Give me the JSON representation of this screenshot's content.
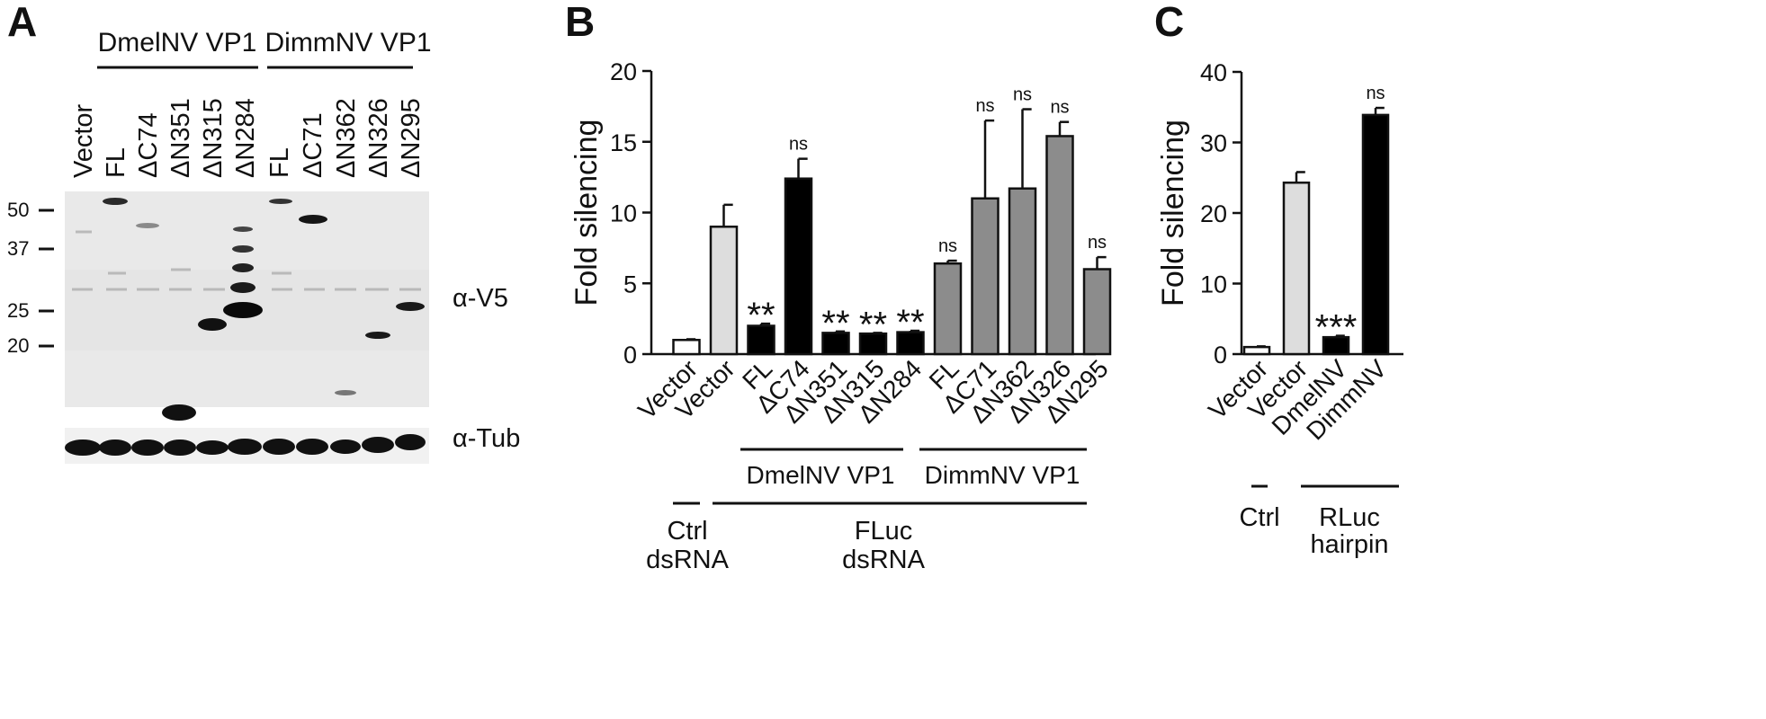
{
  "panel_letters": {
    "a": "A",
    "b": "B",
    "c": "C"
  },
  "blot": {
    "group_labels": [
      "DmelNV VP1",
      "DimmNV VP1"
    ],
    "lane_labels": [
      "Vector",
      "FL",
      "ΔC74",
      "ΔN351",
      "ΔN315",
      "ΔN284",
      "FL",
      "ΔC71",
      "ΔN362",
      "ΔN326",
      "ΔN295"
    ],
    "markers": [
      "50",
      "37",
      "25",
      "20"
    ],
    "antibodies": [
      "α-V5",
      "α-Tub"
    ]
  },
  "chart_data": [
    {
      "type": "bar",
      "panel": "B",
      "ylabel": "Fold silencing",
      "ylim": [
        0,
        20
      ],
      "yticks": [
        "0",
        "5",
        "10",
        "15",
        "20"
      ],
      "categories": [
        "Vector",
        "Vector",
        "FL",
        "ΔC74",
        "ΔN351",
        "ΔN315",
        "ΔN284",
        "FL",
        "ΔC71",
        "ΔN362",
        "ΔN326",
        "ΔN295"
      ],
      "values": [
        1.0,
        9.0,
        2.0,
        12.4,
        1.5,
        1.45,
        1.55,
        6.4,
        11.0,
        11.7,
        15.4,
        6.0
      ],
      "errors": [
        0.05,
        1.55,
        0.15,
        1.4,
        0.1,
        0.05,
        0.1,
        0.2,
        5.5,
        5.6,
        1.0,
        0.85
      ],
      "fills": [
        "#ffffff",
        "#dddddd",
        "#000000",
        "#000000",
        "#000000",
        "#000000",
        "#000000",
        "#8c8c8c",
        "#8c8c8c",
        "#8c8c8c",
        "#8c8c8c",
        "#8c8c8c"
      ],
      "significance": [
        "",
        "",
        "**",
        "ns",
        "**",
        "**",
        "**",
        "ns",
        "ns",
        "ns",
        "ns",
        "ns"
      ],
      "group_labels": [
        "DmelNV VP1",
        "DimmNV VP1"
      ],
      "bottom_labels": [
        "Ctrl",
        "dsRNA",
        "FLuc",
        "dsRNA"
      ]
    },
    {
      "type": "bar",
      "panel": "C",
      "ylabel": "Fold silencing",
      "ylim": [
        0,
        40
      ],
      "yticks": [
        "0",
        "10",
        "20",
        "30",
        "40"
      ],
      "categories": [
        "Vector",
        "Vector",
        "DmelNV",
        "DimmNV"
      ],
      "values": [
        1.0,
        24.3,
        2.4,
        33.9
      ],
      "errors": [
        0.1,
        1.5,
        0.2,
        1.0
      ],
      "fills": [
        "#ffffff",
        "#dddddd",
        "#000000",
        "#000000"
      ],
      "significance": [
        "",
        "",
        "***",
        "ns"
      ],
      "bottom_labels": [
        "Ctrl",
        "RLuc",
        "hairpin"
      ]
    }
  ]
}
